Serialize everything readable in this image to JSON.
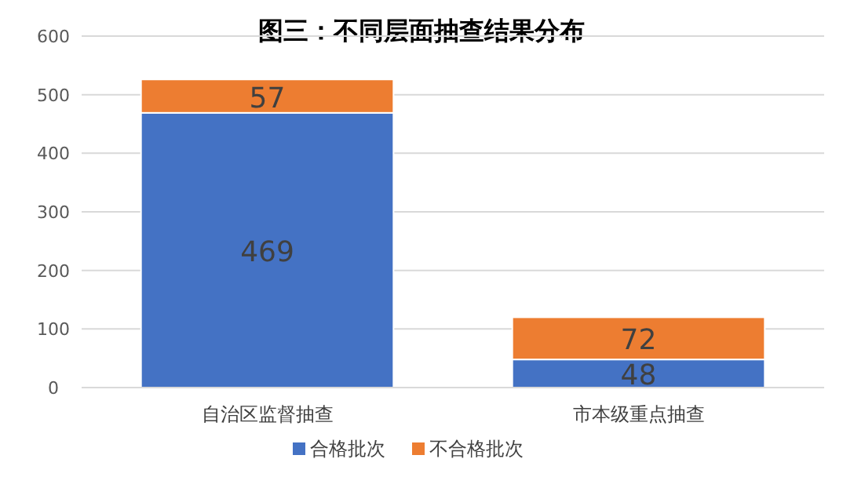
{
  "chart_data": {
    "type": "bar",
    "title": "图三：不同层面抽查结果分布",
    "categories": [
      "自治区监督抽查",
      "市本级重点抽查"
    ],
    "series": [
      {
        "name": "合格批次",
        "color": "#4472c4",
        "values": [
          469,
          48
        ]
      },
      {
        "name": "不合格批次",
        "color": "#ed7d31",
        "values": [
          57,
          72
        ]
      }
    ],
    "stacked": true,
    "data_labels": true,
    "ylim": [
      0,
      600
    ],
    "yticks": [
      0,
      100,
      200,
      300,
      400,
      500,
      600
    ],
    "grid": "y",
    "legend": "bottom"
  }
}
